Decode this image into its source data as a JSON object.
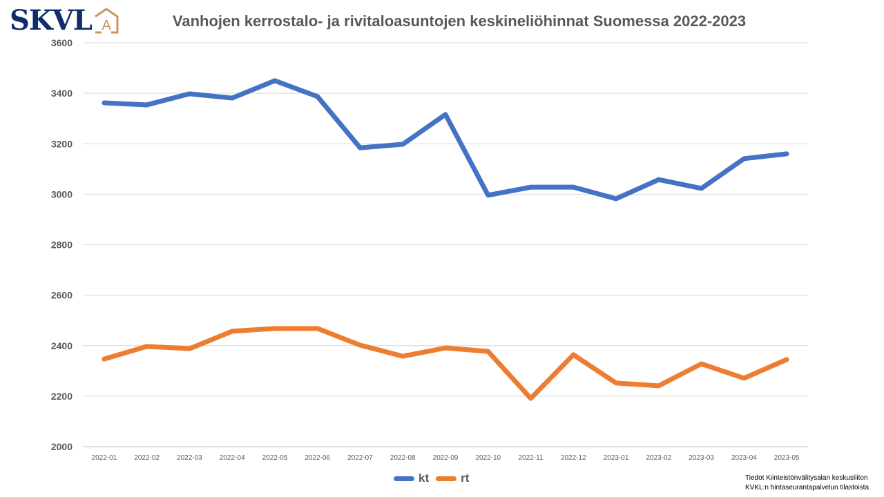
{
  "logo": {
    "text": "SKVL",
    "badge": "A"
  },
  "chart_data": {
    "type": "line",
    "title": "Vanhojen kerrostalo- ja rivitaloasuntojen keskineliöhinnat Suomessa 2022-2023",
    "xlabel": "",
    "ylabel": "",
    "ylim": [
      2000,
      3600
    ],
    "yticks": [
      "2000",
      "2200",
      "2400",
      "2600",
      "2800",
      "3000",
      "3200",
      "3400",
      "3600"
    ],
    "grid": true,
    "legend": "bottom",
    "categories": [
      "2022-01",
      "2022-02",
      "2022-03",
      "2022-04",
      "2022-05",
      "2022-06",
      "2022-07",
      "2022-08",
      "2022-09",
      "2022-10",
      "2022-11",
      "2022-12",
      "2023-01",
      "2023-02",
      "2023-03",
      "2023-04",
      "2023-05"
    ],
    "series": [
      {
        "name": "kt",
        "color": "#4472c4",
        "values": [
          3362,
          3354,
          3398,
          3381,
          3450,
          3387,
          3184,
          3198,
          3316,
          2996,
          3028,
          3028,
          2982,
          3058,
          3023,
          3141,
          3160
        ]
      },
      {
        "name": "rt",
        "color": "#ed7d31",
        "values": [
          2347,
          2397,
          2388,
          2457,
          2468,
          2468,
          2402,
          2358,
          2391,
          2377,
          2191,
          2364,
          2252,
          2241,
          2328,
          2271,
          2345
        ]
      }
    ]
  },
  "footnote": {
    "line1": "Tiedot Kiinteistönvälitysalan keskusliiton",
    "line2": "KVKL:n hintaseurantapalvelun tilastoista"
  }
}
